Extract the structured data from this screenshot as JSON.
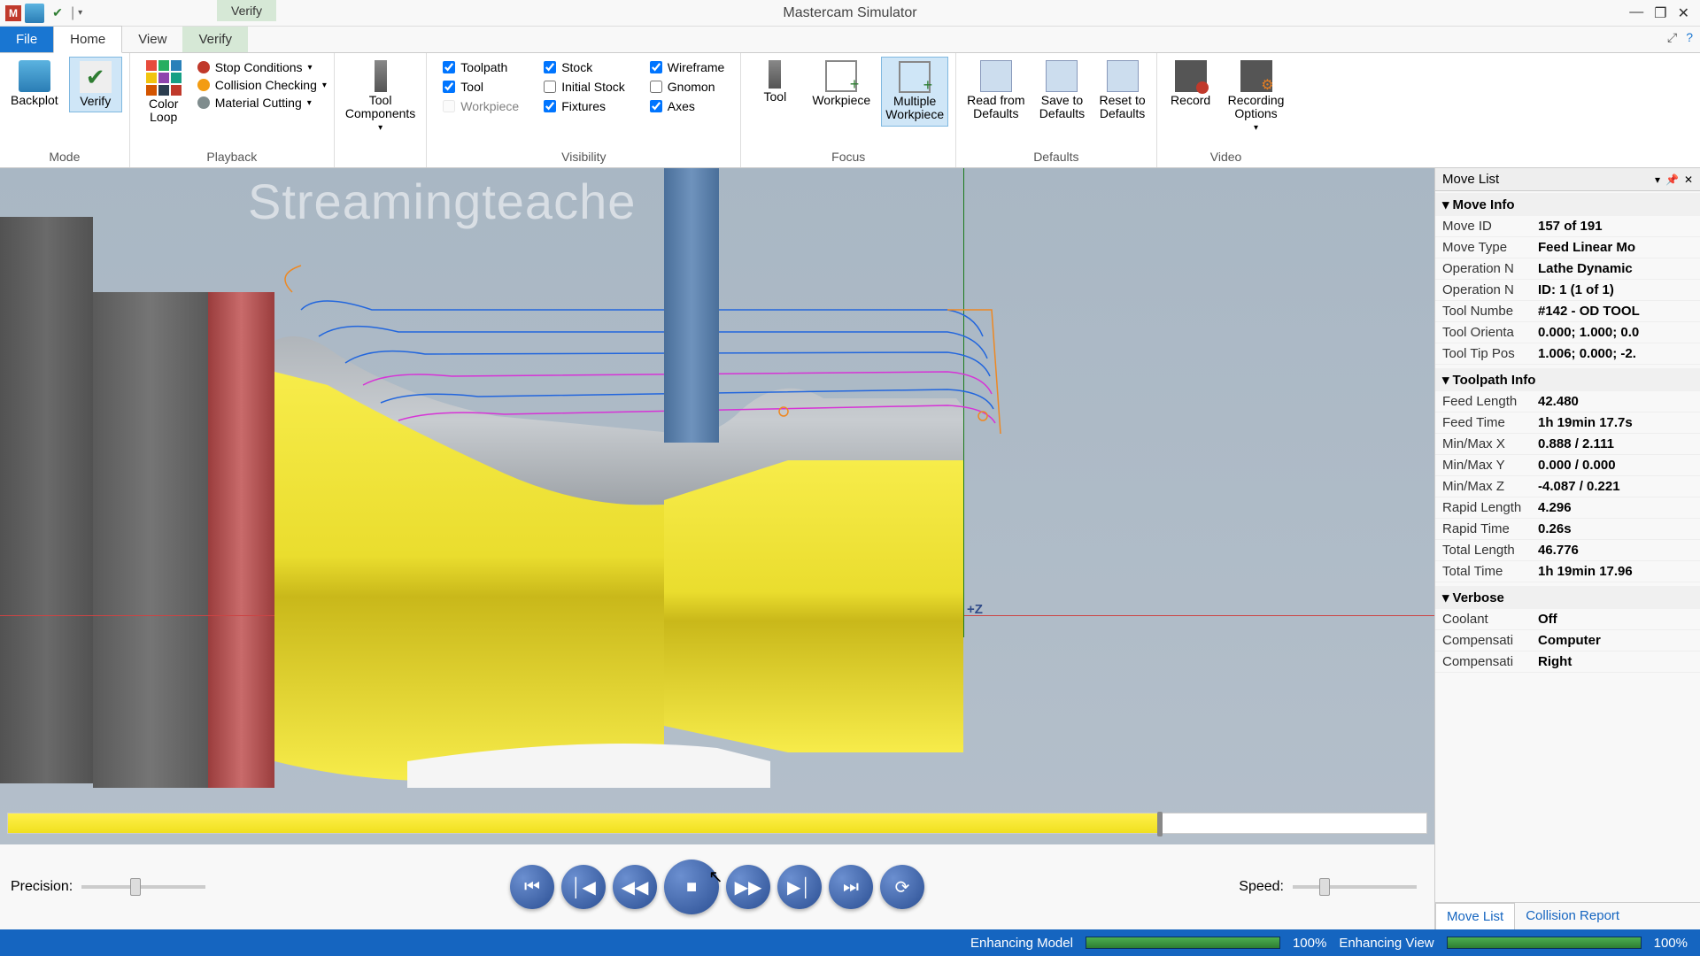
{
  "title": "Mastercam Simulator",
  "verify_tab_label": "Verify",
  "tabs": {
    "file": "File",
    "home": "Home",
    "view": "View",
    "verify": "Verify"
  },
  "ribbon": {
    "mode": {
      "label": "Mode",
      "backplot": "Backplot",
      "verify": "Verify"
    },
    "playback": {
      "label": "Playback",
      "colorloop": "Color\nLoop",
      "stop": "Stop Conditions",
      "collision": "Collision Checking",
      "material": "Material Cutting"
    },
    "toolcomp": {
      "label": "Tool\nComponents"
    },
    "visibility": {
      "label": "Visibility",
      "toolpath": "Toolpath",
      "tool": "Tool",
      "workpiece": "Workpiece",
      "stock": "Stock",
      "initialstock": "Initial Stock",
      "fixtures": "Fixtures",
      "wireframe": "Wireframe",
      "gnomon": "Gnomon",
      "axes": "Axes"
    },
    "focus": {
      "label": "Focus",
      "tool": "Tool",
      "workpiece": "Workpiece",
      "multiple": "Multiple\nWorkpiece"
    },
    "defaults": {
      "label": "Defaults",
      "read": "Read from\nDefaults",
      "save": "Save to\nDefaults",
      "reset": "Reset to\nDefaults"
    },
    "video": {
      "label": "Video",
      "record": "Record",
      "options": "Recording\nOptions"
    }
  },
  "watermark": "Streamingteache",
  "axis_label": "+Z",
  "sidepanel": {
    "title": "Move List",
    "moveinfo": {
      "header": "Move Info",
      "rows": [
        {
          "k": "Move ID",
          "v": "157 of 191"
        },
        {
          "k": "Move Type",
          "v": "Feed Linear Mo"
        },
        {
          "k": "Operation N",
          "v": "Lathe Dynamic"
        },
        {
          "k": "Operation N",
          "v": "ID: 1 (1 of 1)"
        },
        {
          "k": "Tool Numbe",
          "v": "#142 - OD TOOL"
        },
        {
          "k": "Tool Orienta",
          "v": "0.000; 1.000; 0.0"
        },
        {
          "k": "Tool Tip Pos",
          "v": "1.006; 0.000; -2."
        }
      ]
    },
    "toolpathinfo": {
      "header": "Toolpath Info",
      "rows": [
        {
          "k": "Feed Length",
          "v": "42.480"
        },
        {
          "k": "Feed Time",
          "v": "1h 19min 17.7s"
        },
        {
          "k": "Min/Max X",
          "v": "0.888 / 2.111"
        },
        {
          "k": "Min/Max Y",
          "v": "0.000 / 0.000"
        },
        {
          "k": "Min/Max Z",
          "v": "-4.087 / 0.221"
        },
        {
          "k": "Rapid Length",
          "v": "4.296"
        },
        {
          "k": "Rapid Time",
          "v": "0.26s"
        },
        {
          "k": "Total Length",
          "v": "46.776"
        },
        {
          "k": "Total Time",
          "v": "1h 19min 17.96"
        }
      ]
    },
    "verbose": {
      "header": "Verbose",
      "rows": [
        {
          "k": "Coolant",
          "v": "Off"
        },
        {
          "k": "Compensati",
          "v": "Computer"
        },
        {
          "k": "Compensati",
          "v": "Right"
        }
      ]
    },
    "tabs": {
      "movelist": "Move List",
      "collision": "Collision Report"
    }
  },
  "playbar": {
    "precision": "Precision:",
    "speed": "Speed:"
  },
  "status": {
    "model": "Enhancing Model",
    "model_pct": "100%",
    "view": "Enhancing View",
    "view_pct": "100%"
  },
  "colors": {
    "grid": [
      "#e74c3c",
      "#27ae60",
      "#2980b9",
      "#f1c40f",
      "#8e44ad",
      "#16a085",
      "#d35400",
      "#2c3e50",
      "#c0392b"
    ]
  },
  "viewport": {
    "workpiece_color_top": "#f5e942",
    "workpiece_color_mid": "#d4c420",
    "tool_color": "#5a7ea8",
    "toolpath_colors": {
      "feed": "#2266dd",
      "rapid": "#d633d6",
      "retract": "#ee8822"
    },
    "timeline_pct": 81
  }
}
